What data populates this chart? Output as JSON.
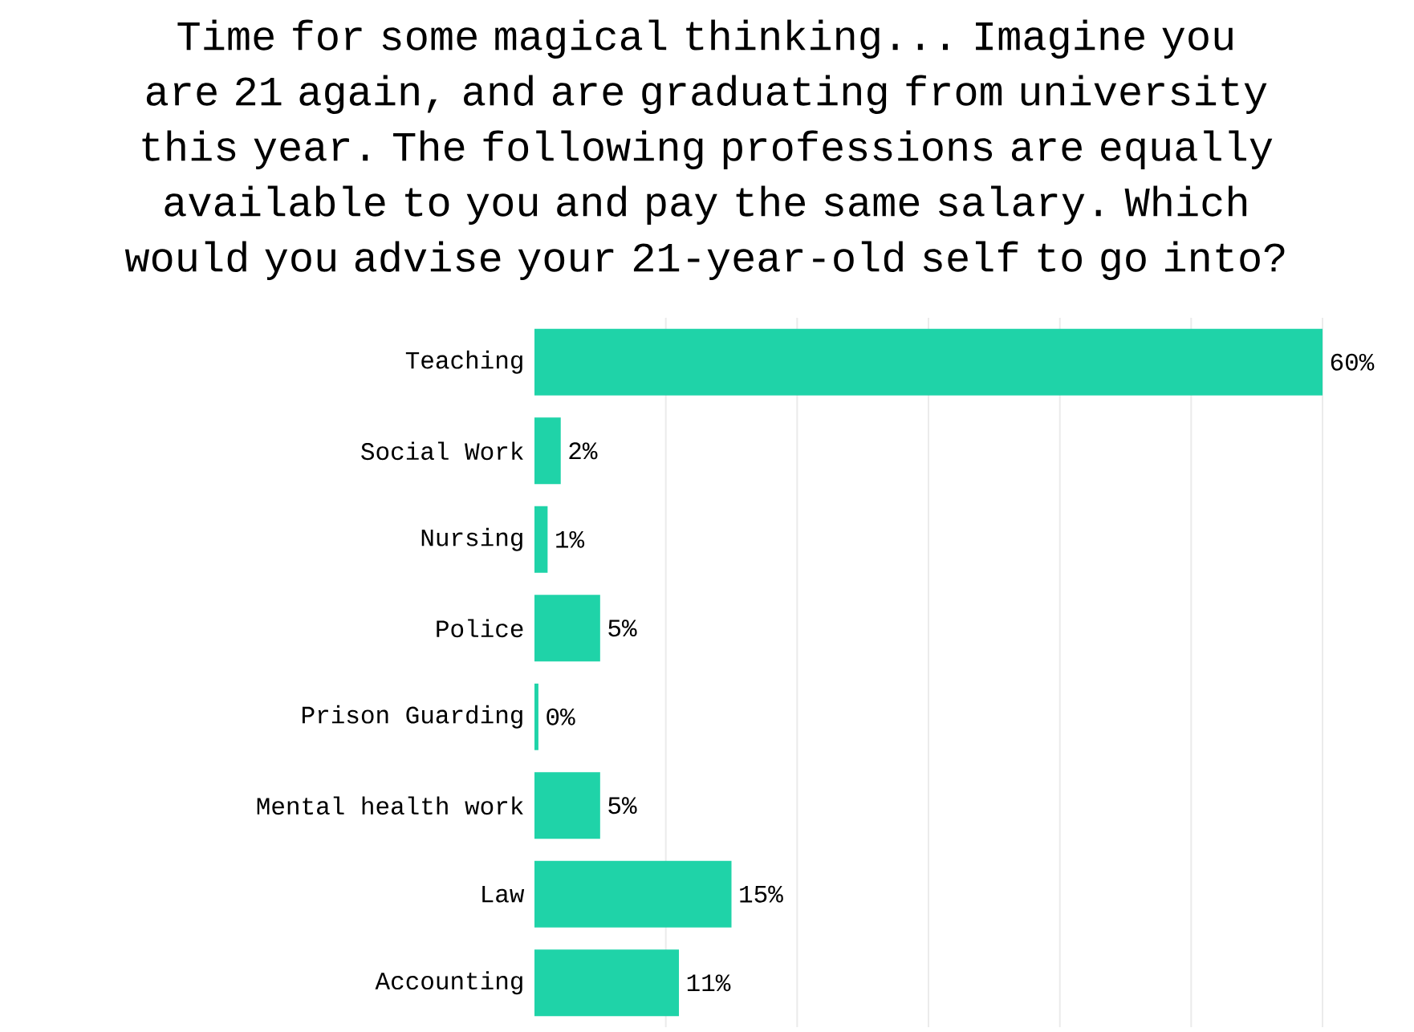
{
  "chart_data": {
    "type": "bar",
    "orientation": "horizontal",
    "title": "Time for some magical thinking... Imagine you are 21 again, and are graduating from university this year. The following professions are equally available to you and pay the same salary. Which would you advise your 21-year-old self to go into?",
    "categories": [
      "Teaching",
      "Social Work",
      "Nursing",
      "Police",
      "Prison Guarding",
      "Mental health work",
      "Law",
      "Accounting"
    ],
    "values": [
      60,
      2,
      1,
      5,
      0.3,
      5,
      15,
      11
    ],
    "value_labels": [
      "60%",
      "2%",
      "1%",
      "5%",
      "0%",
      "5%",
      "15%",
      "11%"
    ],
    "color": "#1fd3a8",
    "xlim": [
      0,
      60
    ],
    "xticks": [
      {
        "value": 10,
        "label": null
      },
      {
        "value": 20,
        "label": null
      },
      {
        "value": 30,
        "label": null
      },
      {
        "value": 40,
        "label": null
      },
      {
        "value": 50,
        "label": null
      },
      {
        "value": 60,
        "label": null
      }
    ],
    "grid": "x",
    "tick_labels": "y"
  }
}
